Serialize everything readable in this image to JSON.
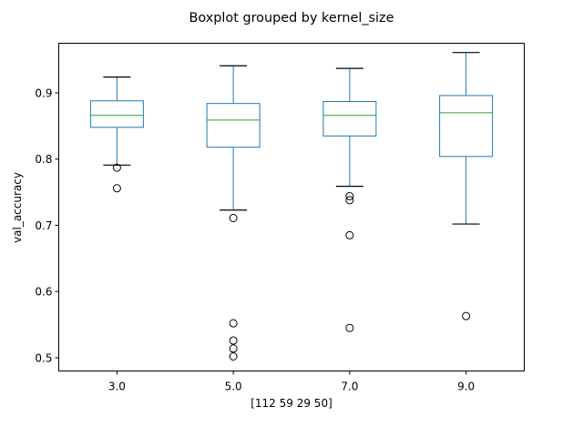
{
  "chart_data": {
    "type": "box",
    "title": "Boxplot grouped by kernel_size",
    "xlabel": "[112  59  29  50]",
    "ylabel": "val_accuracy",
    "categories": [
      "3.0",
      "5.0",
      "7.0",
      "9.0"
    ],
    "ylim": [
      0.48,
      0.975
    ],
    "yticks": [
      0.5,
      0.6,
      0.7,
      0.8,
      0.9
    ],
    "ytick_labels": [
      "0.5",
      "0.6",
      "0.7",
      "0.8",
      "0.9"
    ],
    "grid": false,
    "legend": "none",
    "series": [
      {
        "category": "3.0",
        "whisker_low": 0.791,
        "q1": 0.848,
        "median": 0.866,
        "q3": 0.888,
        "whisker_high": 0.924,
        "outliers": [
          0.787,
          0.756
        ]
      },
      {
        "category": "5.0",
        "whisker_low": 0.723,
        "q1": 0.818,
        "median": 0.859,
        "q3": 0.884,
        "whisker_high": 0.941,
        "outliers": [
          0.711,
          0.552,
          0.526,
          0.514,
          0.502
        ]
      },
      {
        "category": "7.0",
        "whisker_low": 0.759,
        "q1": 0.835,
        "median": 0.866,
        "q3": 0.887,
        "whisker_high": 0.937,
        "outliers": [
          0.744,
          0.738,
          0.685,
          0.545
        ]
      },
      {
        "category": "9.0",
        "whisker_low": 0.702,
        "q1": 0.804,
        "median": 0.87,
        "q3": 0.896,
        "whisker_high": 0.961,
        "outliers": [
          0.563
        ]
      }
    ],
    "colors": {
      "box": "#1f77b4",
      "median": "#2ca02c",
      "whisker": "#1f77b4",
      "cap": "#000000",
      "outlier": "#000000"
    }
  }
}
